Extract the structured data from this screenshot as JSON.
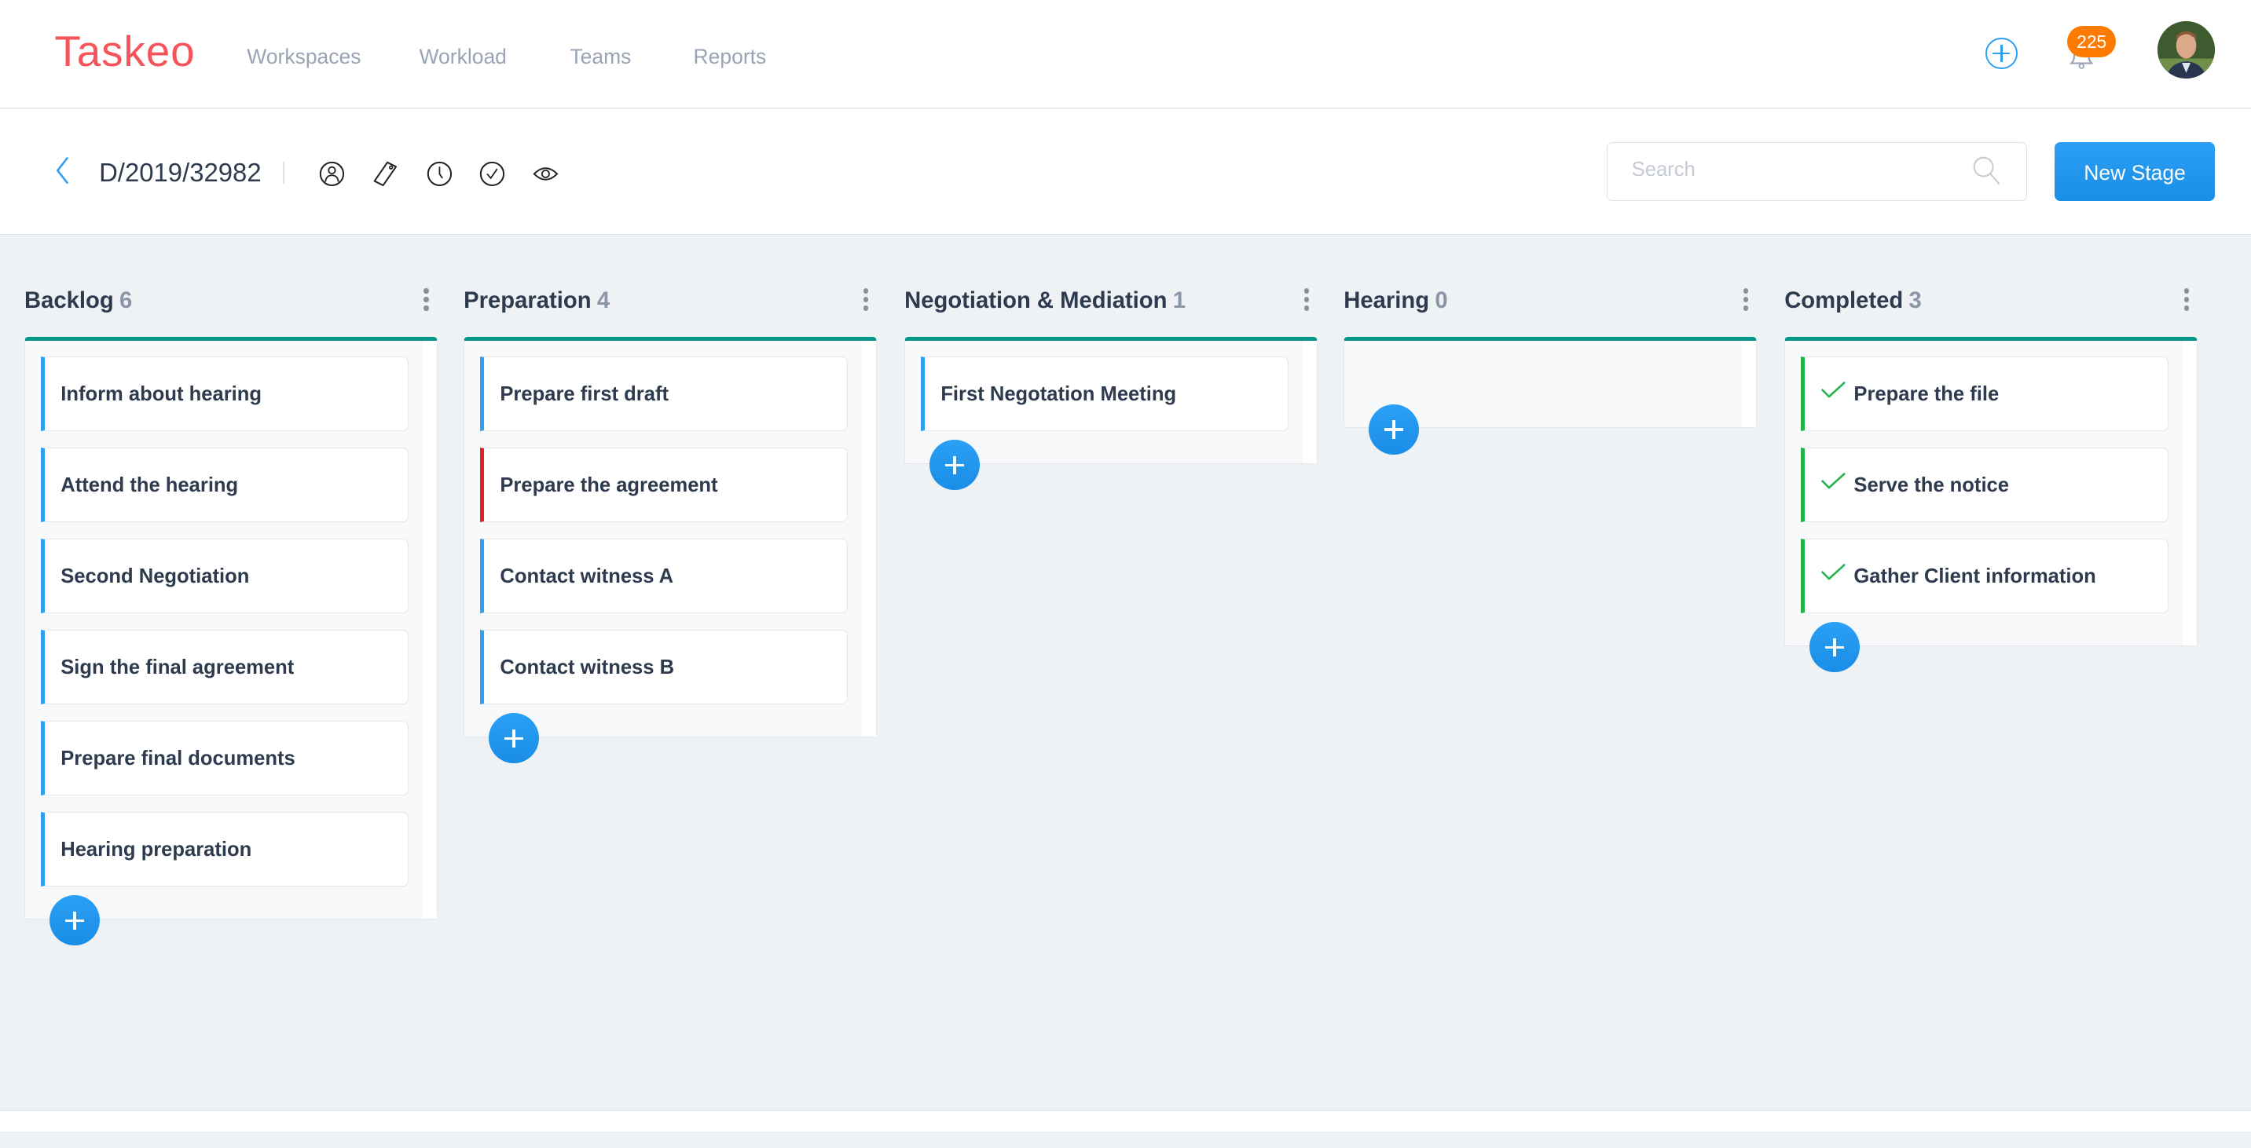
{
  "app": {
    "logo": "Taskeo"
  },
  "nav": [
    {
      "label": "Workspaces"
    },
    {
      "label": "Workload"
    },
    {
      "label": "Teams"
    },
    {
      "label": "Reports"
    }
  ],
  "header": {
    "notifications_count": "225",
    "add_icon": "plus-circle-icon",
    "bell_icon": "bell-icon"
  },
  "toolbar": {
    "case_title": "D/2019/32982",
    "icons": [
      "user-icon",
      "tag-icon",
      "clock-icon",
      "check-circle-icon",
      "eye-icon"
    ],
    "search_placeholder": "Search",
    "search_value": "",
    "new_stage_label": "New Stage"
  },
  "colors": {
    "accent": "#1a8de6",
    "brand": "#f5555a",
    "column_top": "#009688",
    "task_default": "#2f9ff0",
    "task_urgent": "#e5202a",
    "task_done": "#22b14c",
    "badge": "#ff7a00"
  },
  "columns": [
    {
      "title": "Backlog",
      "count": "6",
      "tasks": [
        {
          "label": "Inform about hearing",
          "status": "default"
        },
        {
          "label": "Attend the hearing",
          "status": "default"
        },
        {
          "label": "Second Negotiation",
          "status": "default"
        },
        {
          "label": "Sign the final agreement",
          "status": "default"
        },
        {
          "label": "Prepare final documents",
          "status": "default"
        },
        {
          "label": "Hearing preparation",
          "status": "default"
        }
      ]
    },
    {
      "title": "Preparation",
      "count": "4",
      "tasks": [
        {
          "label": "Prepare first draft",
          "status": "default"
        },
        {
          "label": "Prepare the agreement",
          "status": "urgent"
        },
        {
          "label": "Contact witness A",
          "status": "default"
        },
        {
          "label": "Contact witness B",
          "status": "default"
        }
      ]
    },
    {
      "title": "Negotiation & Mediation",
      "count": "1",
      "tasks": [
        {
          "label": "First Negotation Meeting",
          "status": "default"
        }
      ]
    },
    {
      "title": "Hearing",
      "count": "0",
      "tasks": []
    },
    {
      "title": "Completed",
      "count": "3",
      "tasks": [
        {
          "label": "Prepare the file",
          "status": "done"
        },
        {
          "label": "Serve the notice",
          "status": "done"
        },
        {
          "label": "Gather Client information",
          "status": "done"
        }
      ]
    }
  ]
}
